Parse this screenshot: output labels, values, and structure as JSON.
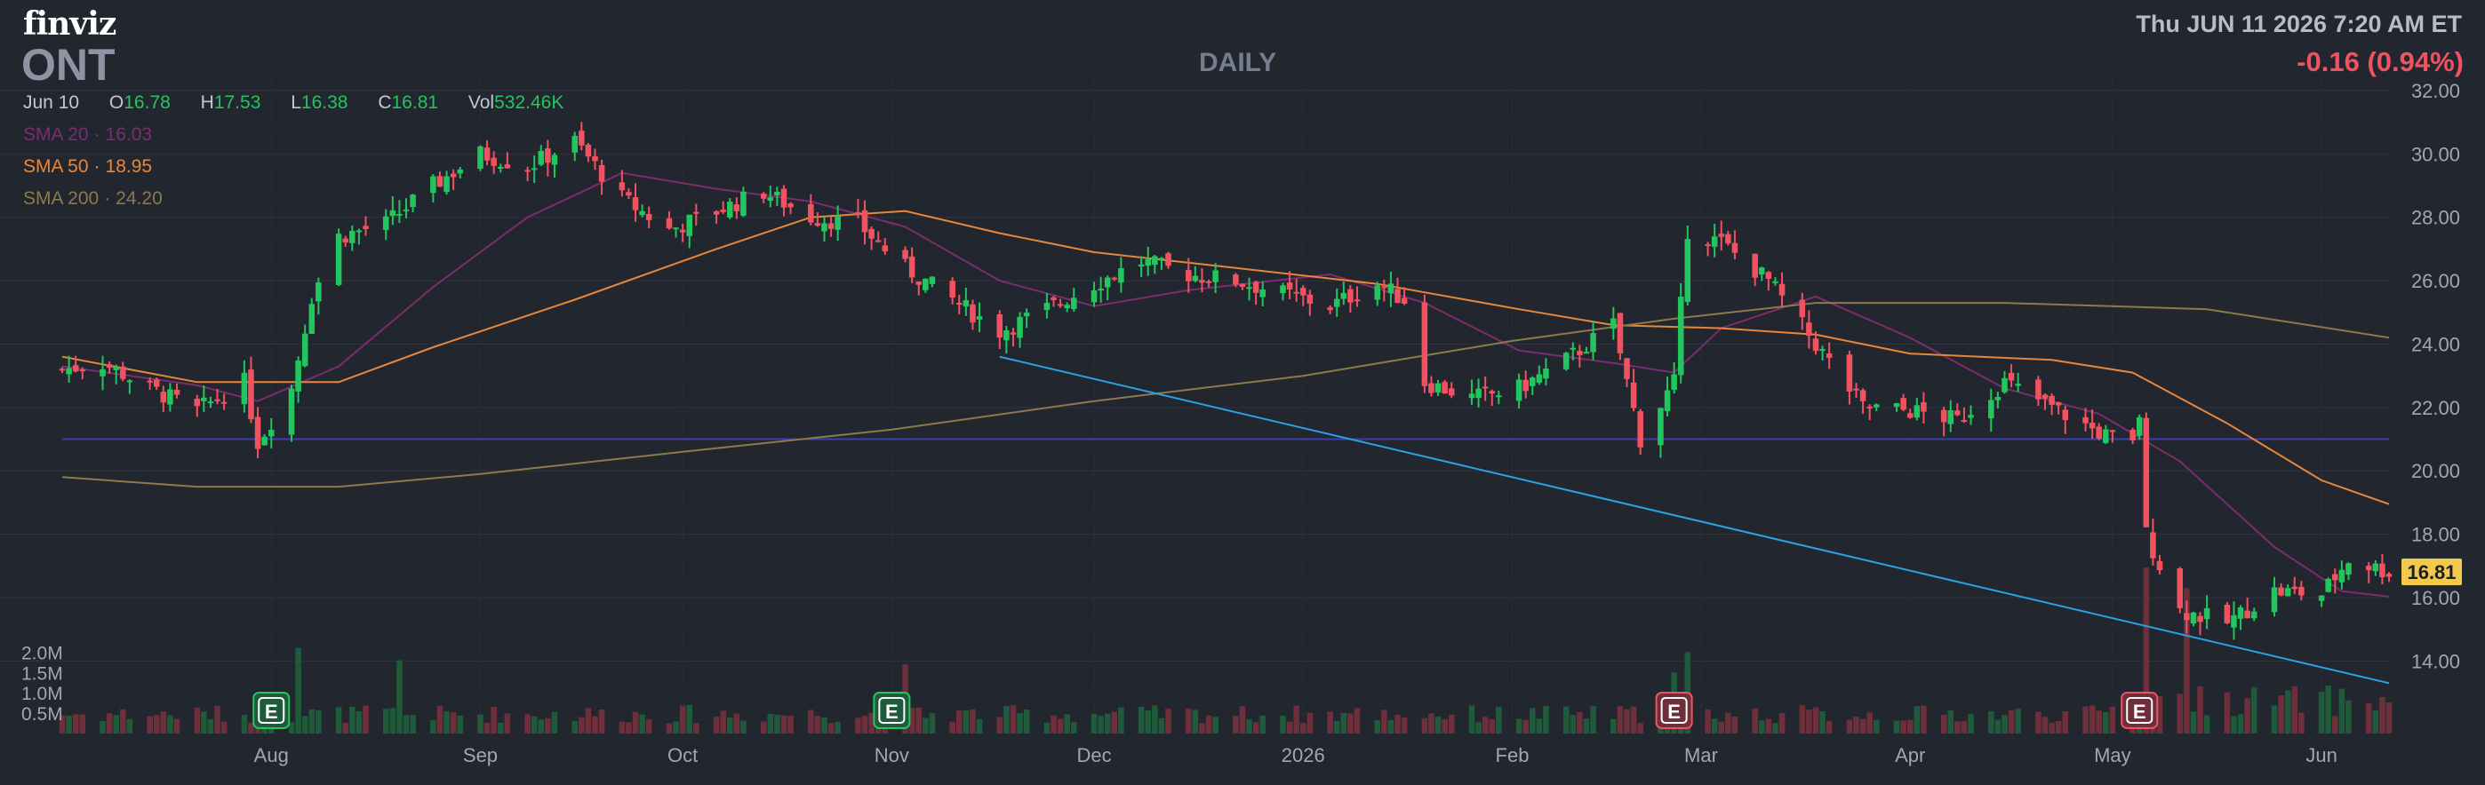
{
  "header": {
    "logo": "finviz",
    "ticker": "ONT",
    "period": "DAILY",
    "datetime": "Thu JUN 11 2026 7:20 AM ET",
    "change": "-0.16 (0.94%)"
  },
  "ohlc": {
    "date": "Jun 10",
    "open_label": "O",
    "open": "16.78",
    "high_label": "H",
    "high": "17.53",
    "low_label": "L",
    "low": "16.38",
    "close_label": "C",
    "close": "16.81",
    "volume_label": "Vol",
    "volume": "532.46K"
  },
  "sma": [
    {
      "label": "SMA 20",
      "value": "16.03",
      "color": "#7b2d6e"
    },
    {
      "label": "SMA 50",
      "value": "18.95",
      "color": "#e8873a"
    },
    {
      "label": "SMA 200",
      "value": "24.20",
      "color": "#8c7a4e"
    }
  ],
  "colors": {
    "up": "#22c55e",
    "down": "#f0525f",
    "up_volume": "#1f5b3a",
    "down_volume": "#6e2f3b",
    "grid": "#2e333d",
    "axis_text": "#a0a6b3",
    "trendline": "#29a3e6",
    "support": "#3d3fa8",
    "last_price_bg": "#f2c94c"
  },
  "chart_data": {
    "type": "candlestick",
    "ticker": "ONT",
    "period": "daily",
    "y_range": [
      13.0,
      32.0
    ],
    "y_ticks": [
      "32.00",
      "30.00",
      "28.00",
      "26.00",
      "24.00",
      "22.00",
      "20.00",
      "18.00",
      "16.00",
      "14.00"
    ],
    "x_range": [
      "2025-07-01",
      "2026-06-11"
    ],
    "x_ticks": [
      {
        "label": "Aug",
        "date": "2025-08-01"
      },
      {
        "label": "Sep",
        "date": "2025-09-01"
      },
      {
        "label": "Oct",
        "date": "2025-10-01"
      },
      {
        "label": "Nov",
        "date": "2025-11-01"
      },
      {
        "label": "Dec",
        "date": "2025-12-01"
      },
      {
        "label": "2026",
        "date": "2026-01-01"
      },
      {
        "label": "Feb",
        "date": "2026-02-01"
      },
      {
        "label": "Mar",
        "date": "2026-03-01"
      },
      {
        "label": "Apr",
        "date": "2026-04-01"
      },
      {
        "label": "May",
        "date": "2026-05-01"
      },
      {
        "label": "Jun",
        "date": "2026-06-01"
      }
    ],
    "volume_ticks": [
      {
        "label": "2.0M",
        "value": 2000000
      },
      {
        "label": "1.5M",
        "value": 1500000
      },
      {
        "label": "1.0M",
        "value": 1000000
      },
      {
        "label": "0.5M",
        "value": 500000
      }
    ],
    "last_price": "16.81",
    "earnings_markers": [
      {
        "label": "E",
        "date": "2025-08-01",
        "type": "beat"
      },
      {
        "label": "E",
        "date": "2025-11-01",
        "type": "beat"
      },
      {
        "label": "E",
        "date": "2026-02-25",
        "type": "miss"
      },
      {
        "label": "E",
        "date": "2026-05-05",
        "type": "miss"
      }
    ],
    "support_line": 21.0,
    "trendline": {
      "start": [
        "2025-11-17",
        23.6
      ],
      "end": [
        "2026-06-11",
        13.3
      ]
    },
    "close_anchors": [
      [
        "2025-07-01",
        23.2
      ],
      [
        "2025-07-07",
        23.4
      ],
      [
        "2025-07-14",
        22.6
      ],
      [
        "2025-07-21",
        21.9
      ],
      [
        "2025-07-28",
        22.8
      ],
      [
        "2025-07-30",
        20.9
      ],
      [
        "2025-08-04",
        22.6
      ],
      [
        "2025-08-07",
        25.5
      ],
      [
        "2025-08-11",
        27.4
      ],
      [
        "2025-08-18",
        27.8
      ],
      [
        "2025-08-25",
        29.0
      ],
      [
        "2025-09-01",
        30.0
      ],
      [
        "2025-09-08",
        29.6
      ],
      [
        "2025-09-15",
        30.4
      ],
      [
        "2025-09-22",
        28.6
      ],
      [
        "2025-09-29",
        27.6
      ],
      [
        "2025-10-06",
        28.2
      ],
      [
        "2025-10-13",
        28.8
      ],
      [
        "2025-10-20",
        28.0
      ],
      [
        "2025-10-27",
        27.8
      ],
      [
        "2025-11-03",
        26.4
      ],
      [
        "2025-11-10",
        25.4
      ],
      [
        "2025-11-17",
        24.4
      ],
      [
        "2025-11-24",
        25.1
      ],
      [
        "2025-12-01",
        25.9
      ],
      [
        "2025-12-08",
        26.6
      ],
      [
        "2025-12-15",
        26.2
      ],
      [
        "2025-12-22",
        26.0
      ],
      [
        "2025-12-29",
        25.6
      ],
      [
        "2026-01-05",
        25.2
      ],
      [
        "2026-01-12",
        25.9
      ],
      [
        "2026-01-16",
        25.4
      ],
      [
        "2026-01-19",
        22.8
      ],
      [
        "2026-01-26",
        22.3
      ],
      [
        "2026-02-02",
        22.6
      ],
      [
        "2026-02-09",
        23.5
      ],
      [
        "2026-02-16",
        24.6
      ],
      [
        "2026-02-20",
        21.0
      ],
      [
        "2026-02-25",
        22.8
      ],
      [
        "2026-02-27",
        27.6
      ],
      [
        "2026-03-04",
        27.2
      ],
      [
        "2026-03-11",
        26.0
      ],
      [
        "2026-03-18",
        24.0
      ],
      [
        "2026-03-25",
        22.0
      ],
      [
        "2026-04-01",
        21.9
      ],
      [
        "2026-04-08",
        21.6
      ],
      [
        "2026-04-15",
        22.8
      ],
      [
        "2026-04-22",
        22.0
      ],
      [
        "2026-04-29",
        21.2
      ],
      [
        "2026-05-04",
        20.8
      ],
      [
        "2026-05-05",
        21.8
      ],
      [
        "2026-05-06",
        18.0
      ],
      [
        "2026-05-11",
        15.6
      ],
      [
        "2026-05-18",
        15.2
      ],
      [
        "2026-05-25",
        16.2
      ],
      [
        "2026-06-01",
        16.1
      ],
      [
        "2026-06-05",
        17.2
      ],
      [
        "2026-06-11",
        16.81
      ]
    ],
    "sma_series": [
      {
        "name": "SMA 20",
        "points": [
          [
            "2025-07-01",
            23.3
          ],
          [
            "2025-07-21",
            22.7
          ],
          [
            "2025-07-30",
            22.2
          ],
          [
            "2025-08-11",
            23.3
          ],
          [
            "2025-08-25",
            25.8
          ],
          [
            "2025-09-08",
            28.0
          ],
          [
            "2025-09-22",
            29.4
          ],
          [
            "2025-10-06",
            28.9
          ],
          [
            "2025-10-20",
            28.5
          ],
          [
            "2025-11-03",
            27.7
          ],
          [
            "2025-11-17",
            26.0
          ],
          [
            "2025-12-01",
            25.2
          ],
          [
            "2025-12-15",
            25.7
          ],
          [
            "2026-01-05",
            26.2
          ],
          [
            "2026-01-19",
            25.3
          ],
          [
            "2026-02-02",
            23.8
          ],
          [
            "2026-02-16",
            23.4
          ],
          [
            "2026-02-25",
            23.1
          ],
          [
            "2026-03-04",
            24.5
          ],
          [
            "2026-03-18",
            25.5
          ],
          [
            "2026-04-01",
            24.2
          ],
          [
            "2026-04-15",
            22.6
          ],
          [
            "2026-04-29",
            21.8
          ],
          [
            "2026-05-11",
            20.3
          ],
          [
            "2026-05-25",
            17.6
          ],
          [
            "2026-06-04",
            16.2
          ],
          [
            "2026-06-11",
            16.03
          ]
        ]
      },
      {
        "name": "SMA 50",
        "points": [
          [
            "2025-07-01",
            23.6
          ],
          [
            "2025-07-21",
            22.8
          ],
          [
            "2025-08-11",
            22.8
          ],
          [
            "2025-08-25",
            23.9
          ],
          [
            "2025-09-15",
            25.4
          ],
          [
            "2025-10-06",
            27.0
          ],
          [
            "2025-10-20",
            28.0
          ],
          [
            "2025-11-03",
            28.2
          ],
          [
            "2025-11-17",
            27.5
          ],
          [
            "2025-12-01",
            26.9
          ],
          [
            "2025-12-22",
            26.4
          ],
          [
            "2026-01-12",
            25.9
          ],
          [
            "2026-02-02",
            25.1
          ],
          [
            "2026-02-16",
            24.6
          ],
          [
            "2026-03-04",
            24.5
          ],
          [
            "2026-03-18",
            24.3
          ],
          [
            "2026-04-01",
            23.7
          ],
          [
            "2026-04-22",
            23.5
          ],
          [
            "2026-05-04",
            23.1
          ],
          [
            "2026-05-18",
            21.5
          ],
          [
            "2026-06-01",
            19.7
          ],
          [
            "2026-06-11",
            18.95
          ]
        ]
      },
      {
        "name": "SMA 200",
        "points": [
          [
            "2025-07-01",
            19.8
          ],
          [
            "2025-07-21",
            19.5
          ],
          [
            "2025-08-11",
            19.5
          ],
          [
            "2025-09-01",
            19.9
          ],
          [
            "2025-10-01",
            20.6
          ],
          [
            "2025-11-01",
            21.3
          ],
          [
            "2025-12-01",
            22.2
          ],
          [
            "2026-01-01",
            23.0
          ],
          [
            "2026-02-01",
            24.1
          ],
          [
            "2026-02-25",
            24.8
          ],
          [
            "2026-03-18",
            25.3
          ],
          [
            "2026-04-15",
            25.3
          ],
          [
            "2026-05-15",
            25.1
          ],
          [
            "2026-06-11",
            24.2
          ]
        ]
      }
    ],
    "volume_pattern": [
      {
        "date": "2025-08-05",
        "value": 2100000
      },
      {
        "date": "2025-08-20",
        "value": 1800000
      },
      {
        "date": "2025-11-03",
        "value": 1700000
      },
      {
        "date": "2026-02-25",
        "value": 1500000
      },
      {
        "date": "2026-02-27",
        "value": 2000000
      },
      {
        "date": "2026-05-06",
        "value": 2400000
      },
      {
        "date": "2026-05-12",
        "value": 2100000
      }
    ]
  }
}
